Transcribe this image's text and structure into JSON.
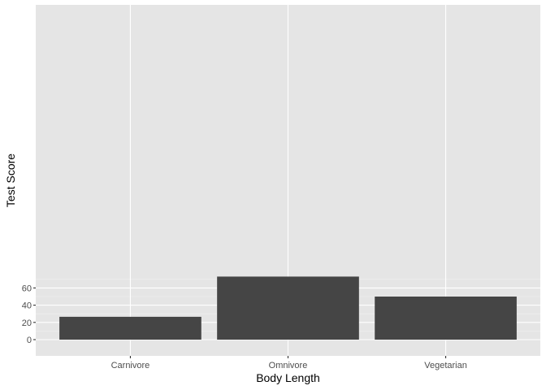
{
  "chart_data": {
    "type": "bar",
    "categories": [
      "Carnivore",
      "Omnivore",
      "Vegetarian"
    ],
    "values": [
      26.5,
      73.2,
      50.0
    ],
    "xlabel": "Body Length",
    "ylabel": "Test Score",
    "ylim": [
      0,
      76.8
    ],
    "y_ticks": [
      0,
      20,
      40,
      60
    ],
    "grid": true,
    "bar_color": "#454545",
    "panel_color": "#e5e5e5",
    "grid_color": "#ffffff"
  }
}
